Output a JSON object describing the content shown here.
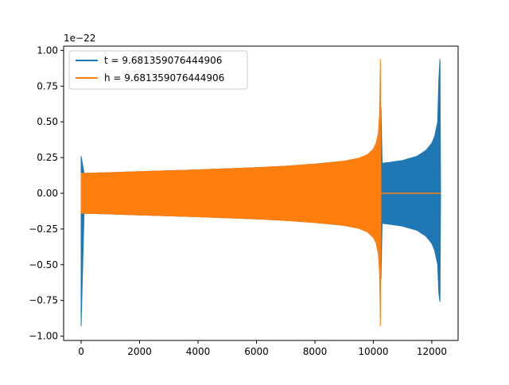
{
  "chart_data": {
    "type": "line",
    "title": "",
    "xlabel": "",
    "ylabel": "",
    "offset_text": "1e−22",
    "xlim": [
      -600,
      12900
    ],
    "ylim": [
      -1.03,
      1.03
    ],
    "x_ticks": [
      0,
      2000,
      4000,
      6000,
      8000,
      10000,
      12000
    ],
    "x_tick_labels": [
      "0",
      "2000",
      "4000",
      "6000",
      "8000",
      "10000",
      "12000"
    ],
    "y_ticks": [
      -1.0,
      -0.75,
      -0.5,
      -0.25,
      0.0,
      0.25,
      0.5,
      0.75,
      1.0
    ],
    "y_tick_labels": [
      "−1.00",
      "−0.75",
      "−0.50",
      "−0.25",
      "0.00",
      "0.25",
      "0.50",
      "0.75",
      "1.00"
    ],
    "grid": false,
    "legend_position": "top-left",
    "series": [
      {
        "name": "t = 9.681359076444906",
        "color": "#1f77b4",
        "envelope_x": [
          0,
          100,
          500,
          1000,
          2000,
          3000,
          4000,
          5000,
          6000,
          7000,
          8000,
          9000,
          9500,
          9800,
          10000,
          10100,
          10200,
          10240,
          10260,
          10300,
          10500,
          11000,
          11500,
          11800,
          12000,
          12100,
          12200,
          12240,
          12280,
          12300
        ],
        "envelope_upper": [
          0.26,
          0.14,
          0.142,
          0.145,
          0.152,
          0.158,
          0.164,
          0.172,
          0.18,
          0.19,
          0.205,
          0.225,
          0.245,
          0.27,
          0.31,
          0.35,
          0.45,
          0.6,
          0.6,
          0.21,
          0.215,
          0.23,
          0.26,
          0.3,
          0.35,
          0.4,
          0.5,
          0.8,
          0.94,
          0.0
        ],
        "envelope_lower": [
          -0.93,
          -0.14,
          -0.142,
          -0.145,
          -0.152,
          -0.158,
          -0.164,
          -0.172,
          -0.18,
          -0.19,
          -0.205,
          -0.225,
          -0.245,
          -0.27,
          -0.31,
          -0.35,
          -0.45,
          -0.6,
          -0.6,
          -0.21,
          -0.215,
          -0.23,
          -0.26,
          -0.3,
          -0.35,
          -0.4,
          -0.5,
          -0.7,
          -0.76,
          0.0
        ]
      },
      {
        "name": "h = 9.681359076444906",
        "color": "#ff7f0e",
        "envelope_x": [
          0,
          100,
          500,
          1000,
          2000,
          3000,
          4000,
          5000,
          6000,
          7000,
          8000,
          9000,
          9500,
          9800,
          10000,
          10100,
          10170,
          10210,
          10240,
          10260,
          10300,
          11000,
          12000,
          12300
        ],
        "envelope_upper": [
          0.14,
          0.14,
          0.142,
          0.145,
          0.152,
          0.158,
          0.164,
          0.172,
          0.18,
          0.19,
          0.205,
          0.225,
          0.245,
          0.27,
          0.31,
          0.35,
          0.42,
          0.55,
          0.94,
          0.0,
          0.0,
          0.0,
          0.0,
          0.0
        ],
        "envelope_lower": [
          -0.14,
          -0.14,
          -0.142,
          -0.145,
          -0.152,
          -0.158,
          -0.164,
          -0.172,
          -0.18,
          -0.19,
          -0.205,
          -0.225,
          -0.245,
          -0.27,
          -0.31,
          -0.35,
          -0.42,
          -0.55,
          -0.93,
          0.0,
          0.0,
          0.0,
          0.0,
          0.0
        ]
      }
    ]
  }
}
